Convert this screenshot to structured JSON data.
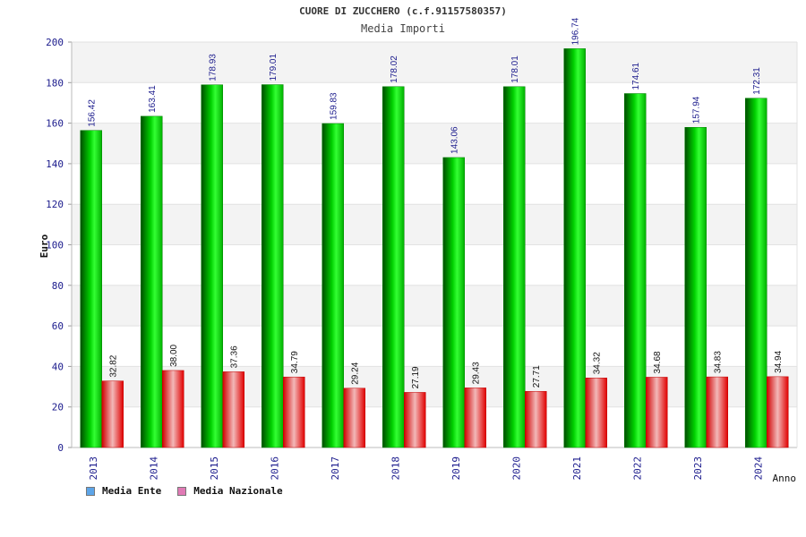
{
  "header": {
    "title": "CUORE DI ZUCCHERO (c.f.91157580357)",
    "subtitle": "Media Importi"
  },
  "legend": {
    "items": [
      {
        "label": "Media Ente",
        "color": "#5da5e8"
      },
      {
        "label": "Media Nazionale",
        "color": "#e07ab5"
      }
    ]
  },
  "chart_data": {
    "type": "bar",
    "title": "CUORE DI ZUCCHERO (c.f.91157580357)",
    "subtitle": "Media Importi",
    "xlabel": "Anno",
    "ylabel": "Euro",
    "ylim": [
      0,
      200
    ],
    "yticks": [
      0,
      20,
      40,
      60,
      80,
      100,
      120,
      140,
      160,
      180,
      200
    ],
    "categories": [
      "2013",
      "2014",
      "2015",
      "2016",
      "2017",
      "2018",
      "2019",
      "2020",
      "2021",
      "2022",
      "2023",
      "2024"
    ],
    "series": [
      {
        "name": "Media Ente",
        "color": "#00b000",
        "values": [
          156.42,
          163.41,
          178.93,
          179.01,
          159.83,
          178.02,
          143.06,
          178.01,
          196.74,
          174.61,
          157.94,
          172.31
        ],
        "labels": [
          "156.42",
          "163.41",
          "178.93",
          "179.01",
          "159.83",
          "178.02",
          "143.06",
          "178.01",
          "196.74",
          "174.61",
          "157.94",
          "172.31"
        ]
      },
      {
        "name": "Media Nazionale",
        "color": "#e00000",
        "values": [
          32.82,
          38.0,
          37.36,
          34.79,
          29.24,
          27.19,
          29.43,
          27.71,
          34.32,
          34.68,
          34.83,
          34.94
        ],
        "labels": [
          "32.82",
          "38.00",
          "37.36",
          "34.79",
          "29.24",
          "27.19",
          "29.43",
          "27.71",
          "34.32",
          "34.68",
          "34.83",
          "34.94"
        ]
      }
    ],
    "grid": true,
    "legend_position": "bottom-left"
  }
}
